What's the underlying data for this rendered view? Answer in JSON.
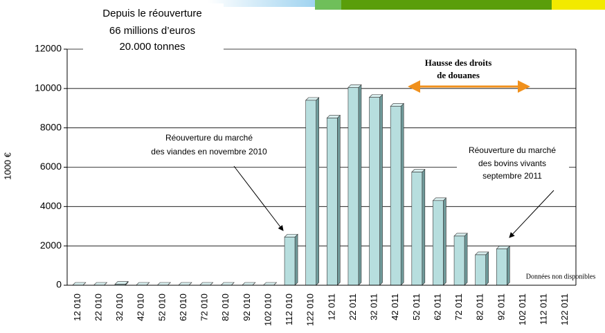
{
  "chart_data": {
    "type": "bar",
    "y_label": "1000 €",
    "categories": [
      "12 010",
      "22 010",
      "32 010",
      "42 010",
      "52 010",
      "62 010",
      "72 010",
      "82 010",
      "92 010",
      "102 010",
      "112 010",
      "122 010",
      "12 011",
      "22 011",
      "32 011",
      "42 011",
      "52 011",
      "62 011",
      "72 011",
      "82 011",
      "92 011",
      "102 011",
      "112 011",
      "122 011"
    ],
    "values": [
      0,
      0,
      50,
      0,
      0,
      0,
      0,
      0,
      0,
      0,
      2450,
      9400,
      8500,
      10050,
      9550,
      9100,
      5750,
      4300,
      2500,
      1550,
      1850,
      null,
      null,
      null
    ],
    "color": "#b7dede",
    "ylim": [
      0,
      12000
    ],
    "yticks": [
      0,
      2000,
      4000,
      6000,
      8000,
      10000,
      12000
    ],
    "grid": true,
    "summary": [
      "Depuis le réouverture",
      "66 millions d’euros",
      "20.000 tonnes"
    ],
    "duty_note": [
      "Hausse des droits",
      "de douanes"
    ],
    "meat_note": [
      "Réouverture du marché",
      "des viandes en novembre 2010"
    ],
    "cattle_note": [
      "Réouverture du marché",
      "des bovins vivants",
      "septembre 2011"
    ],
    "missing_note": "Données non disponibles"
  }
}
